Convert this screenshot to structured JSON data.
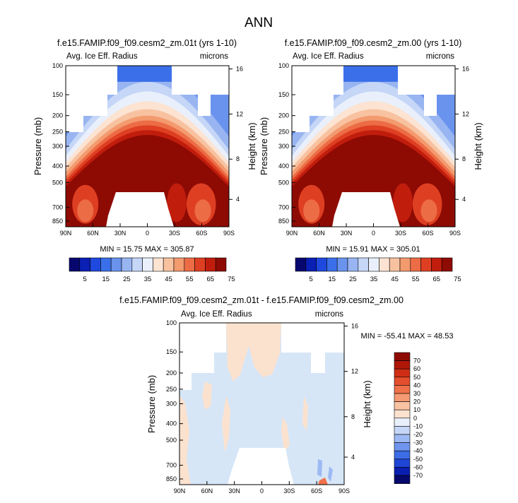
{
  "figure": {
    "main_title": "ANN"
  },
  "chart_data": [
    {
      "type": "heatmap",
      "title": "f.e15.FAMIP.f09_f09.cesm2_zm.01t (yrs 1-10)",
      "variable": "Avg. Ice Eff. Radius",
      "units": "microns",
      "ylabel": "Pressure (mb)",
      "ylabel_right": "Height (km)",
      "x_ticks": [
        "90N",
        "60N",
        "30N",
        "0",
        "30S",
        "60S",
        "90S"
      ],
      "y_ticks": [
        "100",
        "150",
        "200",
        "250",
        "300",
        "400",
        "500",
        "700",
        "850"
      ],
      "y_right_ticks": [
        "16",
        "12",
        "8",
        "4"
      ],
      "stats": {
        "min_label": "MIN =",
        "min": "15.75",
        "max_label": "MAX =",
        "max": "305.87"
      },
      "colorbar": {
        "labels": [
          "5",
          "15",
          "25",
          "35",
          "45",
          "55",
          "65",
          "75"
        ]
      }
    },
    {
      "type": "heatmap",
      "title": "f.e15.FAMIP.f09_f09.cesm2_zm.00 (yrs 1-10)",
      "variable": "Avg. Ice Eff. Radius",
      "units": "microns",
      "ylabel": "Pressure (mb)",
      "ylabel_right": "Height (km)",
      "x_ticks": [
        "90N",
        "60N",
        "30N",
        "0",
        "30S",
        "60S",
        "90S"
      ],
      "y_ticks": [
        "100",
        "150",
        "200",
        "250",
        "300",
        "400",
        "500",
        "700",
        "850"
      ],
      "y_right_ticks": [
        "16",
        "12",
        "8",
        "4"
      ],
      "stats": {
        "min_label": "MIN =",
        "min": "15.91",
        "max_label": "MAX =",
        "max": "305.01"
      },
      "colorbar": {
        "labels": [
          "5",
          "15",
          "25",
          "35",
          "45",
          "55",
          "65",
          "75"
        ]
      }
    },
    {
      "type": "heatmap",
      "title": "f.e15.FAMIP.f09_f09.cesm2_zm.01t - f.e15.FAMIP.f09_f09.cesm2_zm.00",
      "variable": "Avg. Ice Eff. Radius",
      "units": "microns",
      "ylabel": "Pressure (mb)",
      "ylabel_right": "Height (km)",
      "x_ticks": [
        "90N",
        "60N",
        "30N",
        "0",
        "30S",
        "60S",
        "90S"
      ],
      "y_ticks": [
        "100",
        "150",
        "200",
        "250",
        "300",
        "400",
        "500",
        "700",
        "850"
      ],
      "y_right_ticks": [
        "16",
        "12",
        "8",
        "4"
      ],
      "stats": {
        "min_label": "MIN =",
        "min": "-55.41",
        "max_label": "MAX =",
        "max": "48.53"
      },
      "colorbar": {
        "labels": [
          "70",
          "60",
          "50",
          "40",
          "30",
          "20",
          "10",
          "0",
          "-10",
          "-20",
          "-30",
          "-40",
          "-50",
          "-60",
          "-70"
        ]
      }
    }
  ],
  "colors": {
    "abs_scale": [
      "#08076f",
      "#0a1fb4",
      "#1f48de",
      "#3a6fe9",
      "#6a93ee",
      "#98b5f2",
      "#c5d6f7",
      "#e9f0fb",
      "#fce3d2",
      "#f8c2a0",
      "#f39a6e",
      "#ec6c45",
      "#de3f22",
      "#c11d0d",
      "#8e0b04"
    ],
    "diff_scale": [
      "#8e0b04",
      "#b01708",
      "#cf2e14",
      "#e44f2d",
      "#ef7149",
      "#f59a72",
      "#f9c2a2",
      "#fce3d0",
      "#e8f0fb",
      "#c5d6f7",
      "#9db9f3",
      "#6f95ee",
      "#3c6ce6",
      "#1f46d6",
      "#0a1fb0",
      "#07086b"
    ],
    "diff_bg": "#d6e6f7",
    "diff_pos": "#fbe2cf"
  }
}
